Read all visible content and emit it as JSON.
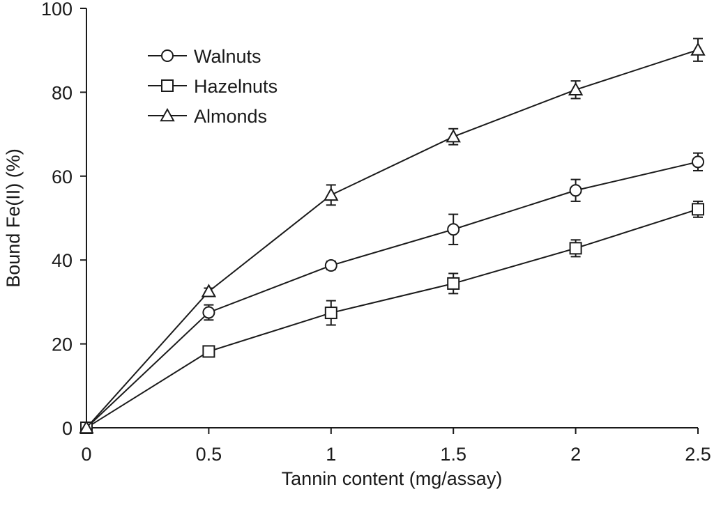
{
  "chart_data": {
    "type": "line",
    "xlabel": "Tannin content (mg/assay)",
    "ylabel": "Bound Fe(II) (%)",
    "xlim": [
      0,
      2.5
    ],
    "ylim": [
      0,
      100
    ],
    "x_ticks": [
      0,
      0.5,
      1,
      1.5,
      2,
      2.5
    ],
    "x_tick_labels": [
      "0",
      "0.5",
      "1",
      "1.5",
      "2",
      "2.5"
    ],
    "y_ticks": [
      0,
      20,
      40,
      60,
      80,
      100
    ],
    "y_tick_labels": [
      "0",
      "20",
      "40",
      "60",
      "80",
      "100"
    ],
    "grid": false,
    "legend_position": "top-left",
    "x": [
      0,
      0.5,
      1,
      1.5,
      2,
      2.5
    ],
    "series": [
      {
        "name": "Walnuts",
        "marker": "circle",
        "values": [
          0,
          27.5,
          38.7,
          47.3,
          56.6,
          63.4
        ],
        "errors": [
          0,
          1.8,
          1.0,
          3.6,
          2.6,
          2.1
        ]
      },
      {
        "name": "Hazelnuts",
        "marker": "square",
        "values": [
          0,
          18.2,
          27.4,
          34.4,
          42.8,
          52.1
        ],
        "errors": [
          0,
          0.8,
          2.9,
          2.4,
          2.0,
          1.9
        ]
      },
      {
        "name": "Almonds",
        "marker": "triangle",
        "values": [
          0,
          32.5,
          55.5,
          69.4,
          80.6,
          90.1
        ],
        "errors": [
          0,
          0.8,
          2.4,
          1.9,
          2.1,
          2.7
        ]
      }
    ]
  }
}
